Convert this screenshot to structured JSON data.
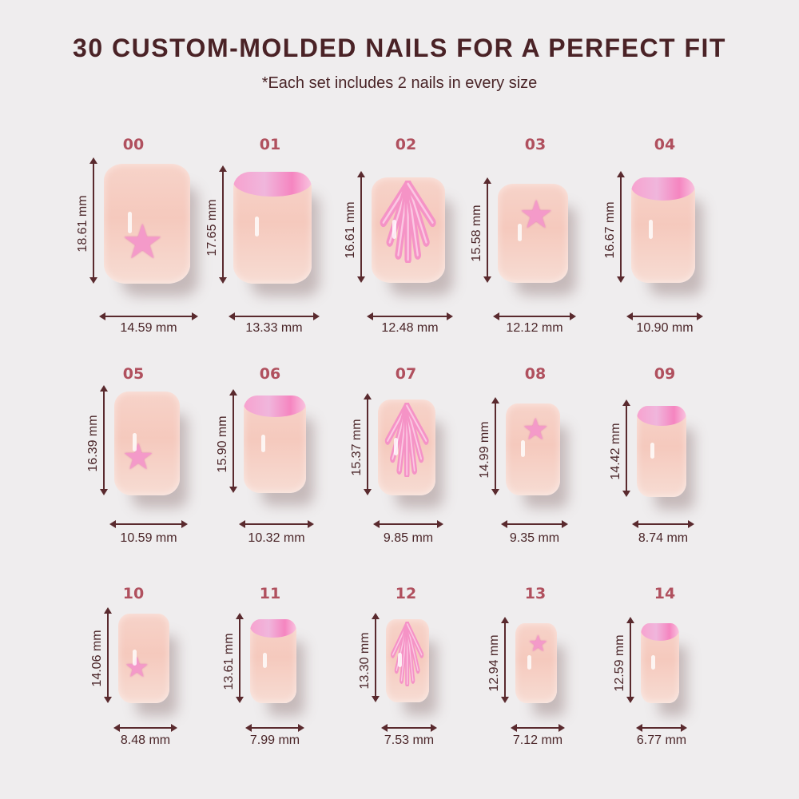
{
  "title": "30 CUSTOM-MOLDED NAILS FOR A PERFECT FIT",
  "subtitle": "*Each set includes 2 nails in every size",
  "colors": {
    "title": "#4a2226",
    "size_label": "#b0505e",
    "arrow": "#5a2a2e",
    "background": "#efedee",
    "accent_pink": "#f49ac9"
  },
  "nails": [
    {
      "size": "00",
      "length": "18.61 mm",
      "width": "14.59 mm",
      "design": "starfish"
    },
    {
      "size": "01",
      "length": "17.65 mm",
      "width": "13.33 mm",
      "design": "french-tip"
    },
    {
      "size": "02",
      "length": "16.61 mm",
      "width": "12.48 mm",
      "design": "seashell"
    },
    {
      "size": "03",
      "length": "15.58 mm",
      "width": "12.12 mm",
      "design": "starfish"
    },
    {
      "size": "04",
      "length": "16.67 mm",
      "width": "10.90 mm",
      "design": "french-tip"
    },
    {
      "size": "05",
      "length": "16.39 mm",
      "width": "10.59 mm",
      "design": "starfish"
    },
    {
      "size": "06",
      "length": "15.90 mm",
      "width": "10.32 mm",
      "design": "french-tip"
    },
    {
      "size": "07",
      "length": "15.37 mm",
      "width": "9.85 mm",
      "design": "seashell"
    },
    {
      "size": "08",
      "length": "14.99 mm",
      "width": "9.35 mm",
      "design": "starfish"
    },
    {
      "size": "09",
      "length": "14.42 mm",
      "width": "8.74 mm",
      "design": "french-tip"
    },
    {
      "size": "10",
      "length": "14.06 mm",
      "width": "8.48 mm",
      "design": "starfish"
    },
    {
      "size": "11",
      "length": "13.61 mm",
      "width": "7.99 mm",
      "design": "french-tip"
    },
    {
      "size": "12",
      "length": "13.30 mm",
      "width": "7.53 mm",
      "design": "seashell"
    },
    {
      "size": "13",
      "length": "12.94 mm",
      "width": "7.12 mm",
      "design": "starfish"
    },
    {
      "size": "14",
      "length": "12.59 mm",
      "width": "6.77 mm",
      "design": "french-tip"
    }
  ]
}
